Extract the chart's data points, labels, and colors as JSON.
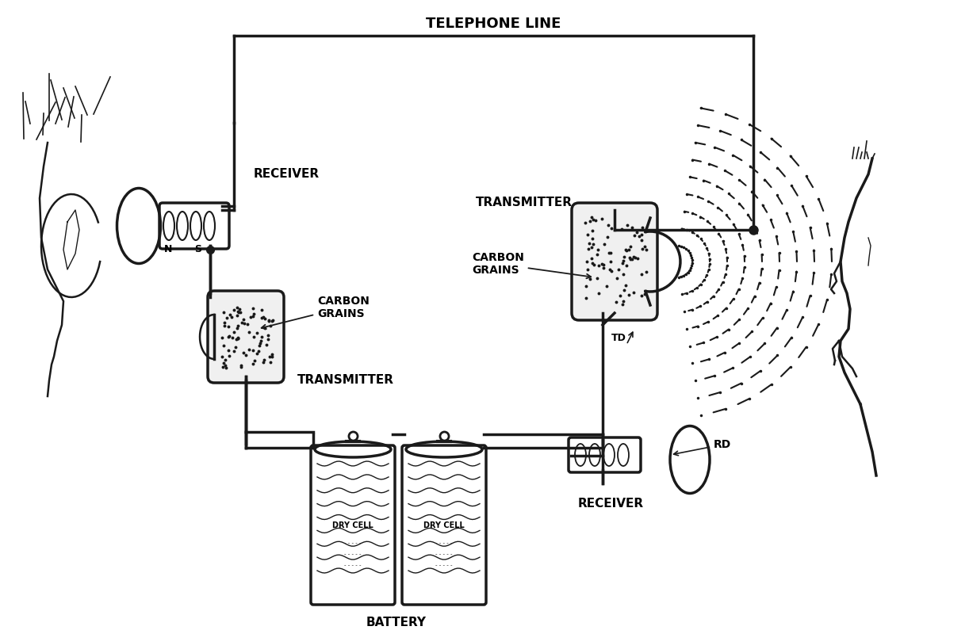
{
  "bg_color": "#ffffff",
  "line_color": "#1a1a1a",
  "title": "TELEPHONE LINE",
  "labels": {
    "receiver_left": "RECEIVER",
    "carbon_grains_left": "CARBON\nGRAINS",
    "transmitter_left": "TRANSMITTER",
    "transmitter_right": "TRANSMITTER",
    "carbon_grains_right": "CARBON\nGRAINS",
    "td": "TD",
    "rd": "RD",
    "receiver_right": "RECEIVER",
    "battery": "BATTERY",
    "dry_cell_1": "DRY CELL",
    "dry_cell_2": "DRY CELL",
    "north": "N",
    "south": "S"
  },
  "figsize": [
    12.22,
    8.0
  ],
  "dpi": 100
}
